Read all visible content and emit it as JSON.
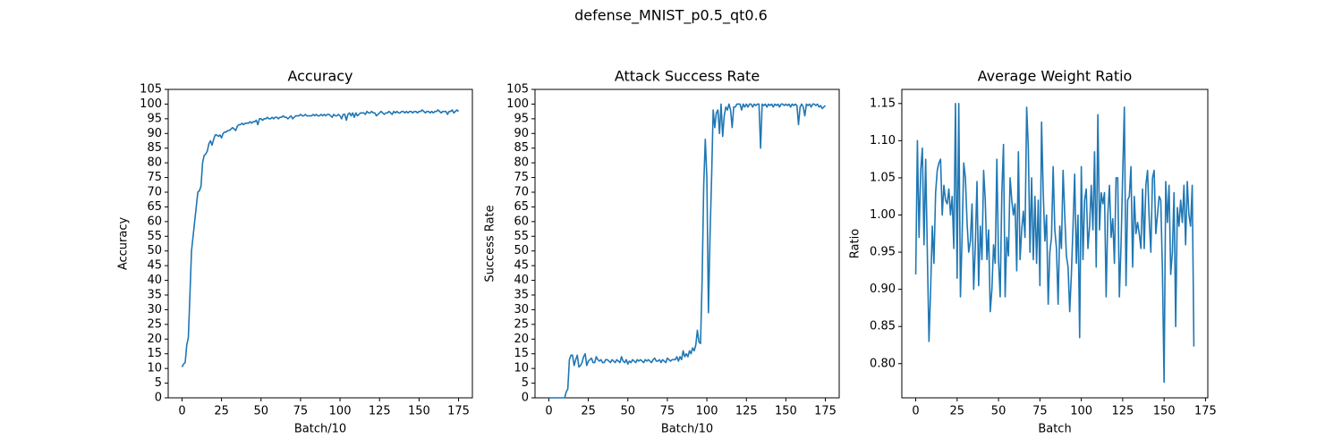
{
  "title": "defense_MNIST_p0.5_qt0.6",
  "chart_data": [
    {
      "type": "line",
      "title": "Accuracy",
      "xlabel": "Batch/10",
      "ylabel": "Accuracy",
      "color": "#1f77b4",
      "xlim": [
        -8.75,
        183.75
      ],
      "ylim": [
        0,
        105
      ],
      "xticks": [
        0,
        25,
        50,
        75,
        100,
        125,
        150,
        175
      ],
      "yticks": [
        0,
        5,
        10,
        15,
        20,
        25,
        30,
        35,
        40,
        45,
        50,
        55,
        60,
        65,
        70,
        75,
        80,
        85,
        90,
        95,
        100,
        105
      ],
      "x": [
        0,
        1,
        2,
        3,
        4,
        5,
        6,
        7,
        8,
        9,
        10,
        11,
        12,
        13,
        14,
        15,
        16,
        17,
        18,
        19,
        20,
        21,
        22,
        23,
        24,
        25,
        26,
        27,
        28,
        29,
        30,
        31,
        32,
        33,
        34,
        35,
        36,
        37,
        38,
        39,
        40,
        41,
        42,
        43,
        44,
        45,
        46,
        47,
        48,
        49,
        50,
        51,
        52,
        53,
        54,
        55,
        56,
        57,
        58,
        59,
        60,
        61,
        62,
        63,
        64,
        65,
        66,
        67,
        68,
        69,
        70,
        71,
        72,
        73,
        74,
        75,
        76,
        77,
        78,
        79,
        80,
        81,
        82,
        83,
        84,
        85,
        86,
        87,
        88,
        89,
        90,
        91,
        92,
        93,
        94,
        95,
        96,
        97,
        98,
        99,
        100,
        101,
        102,
        103,
        104,
        105,
        106,
        107,
        108,
        109,
        110,
        111,
        112,
        113,
        114,
        115,
        116,
        117,
        118,
        119,
        120,
        121,
        122,
        123,
        124,
        125,
        126,
        127,
        128,
        129,
        130,
        131,
        132,
        133,
        134,
        135,
        136,
        137,
        138,
        139,
        140,
        141,
        142,
        143,
        144,
        145,
        146,
        147,
        148,
        149,
        150,
        151,
        152,
        153,
        154,
        155,
        156,
        157,
        158,
        159,
        160,
        161,
        162,
        163,
        164,
        165,
        166,
        167,
        168,
        169,
        170,
        171,
        172,
        173,
        174,
        175
      ],
      "values": [
        10.5,
        11.5,
        12,
        18,
        20.5,
        35,
        50,
        55,
        60,
        65,
        70,
        70.5,
        72,
        80,
        82.5,
        83,
        84,
        86.5,
        87.5,
        86,
        88,
        89.5,
        89.5,
        89,
        89.5,
        88.5,
        90,
        90.5,
        90.5,
        91,
        91,
        91.5,
        92,
        91.5,
        91,
        92.5,
        93,
        93,
        93.5,
        93,
        93.5,
        93.5,
        93.5,
        94,
        93.5,
        94,
        94,
        94.5,
        93,
        95,
        95,
        94.5,
        95,
        95,
        95.5,
        95,
        95,
        95.5,
        95,
        95.5,
        95.5,
        95,
        95.5,
        95.5,
        96,
        95.5,
        95.5,
        95,
        95.5,
        96,
        95,
        95.5,
        96,
        96,
        96,
        96.5,
        96,
        96,
        96.5,
        96,
        96,
        96,
        96,
        96.5,
        96,
        96.5,
        96,
        96,
        96.5,
        96,
        96.5,
        96,
        96.5,
        96.5,
        96,
        95.5,
        96.5,
        96,
        96,
        96.5,
        96,
        95,
        96.5,
        96.5,
        94.5,
        96.5,
        97,
        96,
        97,
        95.5,
        97,
        96,
        96.5,
        97,
        97,
        97,
        96.5,
        97.5,
        97,
        97,
        97.5,
        97,
        97,
        96,
        96.5,
        97,
        97.5,
        97,
        96.5,
        97,
        97,
        97.5,
        97,
        96.5,
        97.5,
        97,
        97.5,
        97,
        97,
        97.5,
        97.5,
        97,
        97.5,
        97,
        97.5,
        97.5,
        97,
        97.5,
        97.5,
        97,
        97.5,
        97.5,
        98,
        97.5,
        97,
        97.5,
        97.5,
        97,
        97.5,
        97,
        97.5,
        97.5,
        98,
        97.5,
        97,
        97.5,
        97.5,
        97.5,
        96.5,
        97.5,
        97.5,
        98,
        97,
        97.5,
        98,
        97.5
      ]
    },
    {
      "type": "line",
      "title": "Attack Success Rate",
      "xlabel": "Batch/10",
      "ylabel": "Success Rate",
      "color": "#1f77b4",
      "xlim": [
        -8.75,
        183.75
      ],
      "ylim": [
        0,
        105
      ],
      "xticks": [
        0,
        25,
        50,
        75,
        100,
        125,
        150,
        175
      ],
      "yticks": [
        0,
        5,
        10,
        15,
        20,
        25,
        30,
        35,
        40,
        45,
        50,
        55,
        60,
        65,
        70,
        75,
        80,
        85,
        90,
        95,
        100,
        105
      ],
      "x": [
        0,
        1,
        2,
        3,
        4,
        5,
        6,
        7,
        8,
        9,
        10,
        11,
        12,
        13,
        14,
        15,
        16,
        17,
        18,
        19,
        20,
        21,
        22,
        23,
        24,
        25,
        26,
        27,
        28,
        29,
        30,
        31,
        32,
        33,
        34,
        35,
        36,
        37,
        38,
        39,
        40,
        41,
        42,
        43,
        44,
        45,
        46,
        47,
        48,
        49,
        50,
        51,
        52,
        53,
        54,
        55,
        56,
        57,
        58,
        59,
        60,
        61,
        62,
        63,
        64,
        65,
        66,
        67,
        68,
        69,
        70,
        71,
        72,
        73,
        74,
        75,
        76,
        77,
        78,
        79,
        80,
        81,
        82,
        83,
        84,
        85,
        86,
        87,
        88,
        89,
        90,
        91,
        92,
        93,
        94,
        95,
        96,
        97,
        98,
        99,
        100,
        101,
        102,
        103,
        104,
        105,
        106,
        107,
        108,
        109,
        110,
        111,
        112,
        113,
        114,
        115,
        116,
        117,
        118,
        119,
        120,
        121,
        122,
        123,
        124,
        125,
        126,
        127,
        128,
        129,
        130,
        131,
        132,
        133,
        134,
        135,
        136,
        137,
        138,
        139,
        140,
        141,
        142,
        143,
        144,
        145,
        146,
        147,
        148,
        149,
        150,
        151,
        152,
        153,
        154,
        155,
        156,
        157,
        158,
        159,
        160,
        161,
        162,
        163,
        164,
        165,
        166,
        167,
        168,
        169,
        170,
        171,
        172,
        173,
        174,
        175
      ],
      "values": [
        0,
        0,
        0,
        0,
        0,
        0,
        0,
        0,
        0,
        0,
        0,
        2,
        3,
        13,
        14.5,
        14.5,
        11,
        13,
        14.5,
        10.5,
        11,
        12,
        14,
        15,
        11,
        12.5,
        13,
        13.5,
        12,
        12,
        14,
        13,
        12.5,
        13,
        12,
        12,
        13,
        13,
        12.5,
        12,
        13,
        12.5,
        12,
        13,
        12.5,
        12,
        14,
        12.5,
        12,
        13,
        11.5,
        12.5,
        12,
        13,
        12.5,
        12,
        13,
        12.5,
        13,
        12.5,
        12,
        13,
        12.5,
        13,
        12.5,
        12,
        13,
        13.5,
        12.5,
        12.5,
        13,
        12,
        13,
        12.5,
        12,
        13.5,
        13,
        12.5,
        13,
        13,
        13,
        14,
        12.5,
        14,
        13,
        16,
        14,
        15,
        14,
        16,
        15,
        17,
        16,
        18,
        23,
        19,
        18.5,
        40,
        72,
        88,
        75,
        29,
        55,
        75,
        98,
        92,
        97,
        98,
        90,
        100,
        89,
        96,
        99,
        98,
        100,
        98,
        92,
        99,
        99,
        100,
        100,
        100,
        98,
        100,
        99,
        100,
        99,
        100,
        100,
        99,
        100,
        99.5,
        100,
        100,
        85,
        100,
        99.5,
        100,
        99,
        100,
        99.5,
        100,
        99,
        100,
        99.5,
        100,
        99,
        100,
        100,
        99.5,
        100,
        99.5,
        100,
        99,
        100,
        99.5,
        100,
        99.5,
        93,
        99,
        100,
        99,
        96,
        100,
        99.5,
        100,
        99,
        100,
        100,
        99.5,
        100,
        99,
        99.5,
        98.5,
        99,
        99.5
      ]
    },
    {
      "type": "line",
      "title": "Average Weight Ratio",
      "xlabel": "Batch",
      "ylabel": "Ratio",
      "color": "#1f77b4",
      "xlim": [
        -8.4,
        176.4
      ],
      "ylim": [
        0.754,
        1.169
      ],
      "xticks": [
        0,
        25,
        50,
        75,
        100,
        125,
        150,
        175
      ],
      "yticks": [
        {
          "value": 0.8,
          "label": "0.80"
        },
        0.85,
        {
          "value": 0.9,
          "label": "0.90"
        },
        0.95,
        {
          "value": 1.0,
          "label": "1.00"
        },
        1.05,
        {
          "value": 1.1,
          "label": "1.10"
        },
        1.15
      ],
      "x": [
        0,
        1,
        2,
        3,
        4,
        5,
        6,
        7,
        8,
        9,
        10,
        11,
        12,
        13,
        14,
        15,
        16,
        17,
        18,
        19,
        20,
        21,
        22,
        23,
        24,
        25,
        26,
        27,
        28,
        29,
        30,
        31,
        32,
        33,
        34,
        35,
        36,
        37,
        38,
        39,
        40,
        41,
        42,
        43,
        44,
        45,
        46,
        47,
        48,
        49,
        50,
        51,
        52,
        53,
        54,
        55,
        56,
        57,
        58,
        59,
        60,
        61,
        62,
        63,
        64,
        65,
        66,
        67,
        68,
        69,
        70,
        71,
        72,
        73,
        74,
        75,
        76,
        77,
        78,
        79,
        80,
        81,
        82,
        83,
        84,
        85,
        86,
        87,
        88,
        89,
        90,
        91,
        92,
        93,
        94,
        95,
        96,
        97,
        98,
        99,
        100,
        101,
        102,
        103,
        104,
        105,
        106,
        107,
        108,
        109,
        110,
        111,
        112,
        113,
        114,
        115,
        116,
        117,
        118,
        119,
        120,
        121,
        122,
        123,
        124,
        125,
        126,
        127,
        128,
        129,
        130,
        131,
        132,
        133,
        134,
        135,
        136,
        137,
        138,
        139,
        140,
        141,
        142,
        143,
        144,
        145,
        146,
        147,
        148,
        149,
        150,
        151,
        152,
        153,
        154,
        155,
        156,
        157,
        158,
        159,
        160,
        161,
        162,
        163,
        164,
        165,
        166,
        167,
        168
      ],
      "values": [
        0.92,
        1.1,
        0.97,
        1.06,
        1.09,
        0.96,
        1.075,
        0.95,
        0.83,
        0.9,
        0.985,
        0.935,
        1.03,
        1.06,
        1.07,
        1.075,
        1.0,
        1.04,
        1.02,
        1.015,
        1.035,
        1.0,
        1.025,
        0.955,
        1.15,
        0.915,
        1.15,
        0.89,
        0.97,
        1.07,
        1.05,
        0.99,
        0.95,
        0.965,
        1.015,
        0.9,
        0.96,
        1.045,
        0.905,
        0.985,
        0.94,
        1.06,
        1.02,
        0.94,
        0.98,
        0.87,
        0.9,
        0.96,
        0.935,
        1.075,
        0.94,
        0.89,
        1.03,
        1.095,
        0.89,
        0.97,
        0.945,
        1.05,
        1.02,
        1.0,
        1.015,
        0.925,
        1.085,
        0.94,
        0.98,
        1.005,
        0.97,
        1.145,
        1.09,
        0.95,
        1.05,
        0.94,
        1.025,
        0.935,
        1.02,
        0.905,
        1.125,
        1.03,
        0.965,
        1.0,
        0.88,
        0.95,
        0.97,
        1.065,
        0.98,
        0.955,
        0.88,
        0.985,
        0.955,
        1.06,
        1.0,
        0.945,
        0.93,
        0.87,
        0.92,
        0.985,
        1.055,
        0.935,
        1.0,
        0.835,
        1.065,
        0.94,
        1.02,
        1.035,
        0.955,
        0.985,
        1.04,
        0.98,
        1.085,
        0.93,
        1.135,
        0.98,
        1.03,
        1.015,
        1.03,
        0.89,
        1.0,
        1.04,
        0.97,
        0.995,
        0.935,
        1.05,
        1.05,
        0.89,
        0.96,
        1.055,
        1.145,
        0.905,
        1.02,
        1.025,
        1.065,
        0.93,
        1.025,
        0.975,
        0.99,
        0.975,
        0.955,
        1.035,
        0.955,
        1.04,
        1.06,
        0.995,
        0.95,
        1.05,
        1.06,
        0.975,
        1.0,
        1.025,
        1.02,
        0.925,
        0.775,
        1.045,
        0.99,
        1.04,
        0.92,
        0.95,
        1.03,
        0.85,
        1.01,
        0.985,
        1.02,
        0.99,
        1.04,
        0.96,
        1.045,
        1.0,
        0.985,
        1.04,
        0.823
      ]
    }
  ]
}
